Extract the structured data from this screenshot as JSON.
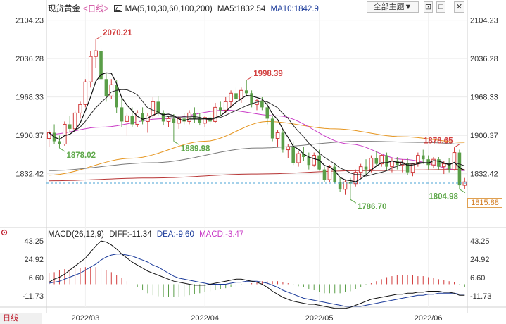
{
  "header": {
    "instrument": "现货黄金",
    "period": "<日线>",
    "ma_params": "MA(5,10,30,60,100,200)",
    "ma5": "MA5:1832.54",
    "ma10": "MA10:1842.9",
    "theme_button": "全部主题▼"
  },
  "macd_header": {
    "params": "MACD(26,12,9)",
    "diff": "DIFF:-11.34",
    "dea": "DEA:-9.60",
    "macd": "MACD:-3.47"
  },
  "footer": {
    "period_label": "日线"
  },
  "colors": {
    "up": "#d23c3c",
    "down": "#5a9e48",
    "ma5": "#111111",
    "ma10": "#2a2a2a",
    "ma30": "#c93ac6",
    "ma60": "#7a7a7a",
    "ma100": "#e6951e",
    "ma200": "#b83535",
    "label_high": "#d24040",
    "label_low": "#5ea84a",
    "current_price": "#d27a1e"
  },
  "icons": [
    "chart-type-icon",
    "restore-icon",
    "window-icon",
    "close-icon",
    "settings-gear-icon"
  ],
  "chart_data": {
    "type": "candlestick",
    "price_axis": {
      "ticks": [
        "2104.23",
        "2036.28",
        "1968.33",
        "1900.37",
        "1832.42"
      ],
      "range": [
        1766,
        2120
      ]
    },
    "x_axis": {
      "labels": [
        "2022/03",
        "2022/04",
        "2022/05",
        "2022/06"
      ],
      "label_indices": [
        7,
        30,
        52,
        73
      ]
    },
    "current_price": "1815.88",
    "annotations": [
      {
        "text": "2070.21",
        "index": 9,
        "kind": "high"
      },
      {
        "text": "1878.02",
        "index": 2,
        "kind": "low"
      },
      {
        "text": "1889.98",
        "index": 24,
        "kind": "low"
      },
      {
        "text": "1998.39",
        "index": 38,
        "kind": "high"
      },
      {
        "text": "1786.70",
        "index": 58,
        "kind": "low"
      },
      {
        "text": "1878.65",
        "index": 78,
        "kind": "high"
      },
      {
        "text": "1804.98",
        "index": 79,
        "kind": "low"
      }
    ],
    "candles": [
      [
        1895,
        1910,
        1880,
        1905
      ],
      [
        1905,
        1920,
        1885,
        1890
      ],
      [
        1890,
        1900,
        1878,
        1885
      ],
      [
        1885,
        1925,
        1882,
        1920
      ],
      [
        1920,
        1935,
        1905,
        1912
      ],
      [
        1912,
        1945,
        1908,
        1940
      ],
      [
        1940,
        1960,
        1930,
        1955
      ],
      [
        1955,
        2000,
        1950,
        1995
      ],
      [
        1995,
        2050,
        1985,
        2040
      ],
      [
        2040,
        2070,
        2020,
        2050
      ],
      [
        2050,
        2055,
        1990,
        2000
      ],
      [
        2000,
        2010,
        1960,
        1970
      ],
      [
        1970,
        2000,
        1965,
        1990
      ],
      [
        1990,
        1998,
        1940,
        1950
      ],
      [
        1950,
        1968,
        1915,
        1925
      ],
      [
        1925,
        1940,
        1900,
        1935
      ],
      [
        1935,
        1950,
        1915,
        1920
      ],
      [
        1920,
        1945,
        1915,
        1940
      ],
      [
        1940,
        1950,
        1920,
        1925
      ],
      [
        1925,
        1940,
        1905,
        1935
      ],
      [
        1935,
        1968,
        1930,
        1960
      ],
      [
        1960,
        1970,
        1935,
        1940
      ],
      [
        1940,
        1945,
        1918,
        1925
      ],
      [
        1925,
        1935,
        1915,
        1930
      ],
      [
        1930,
        1938,
        1890,
        1922
      ],
      [
        1922,
        1935,
        1912,
        1930
      ],
      [
        1930,
        1940,
        1920,
        1925
      ],
      [
        1925,
        1945,
        1920,
        1940
      ],
      [
        1940,
        1950,
        1922,
        1930
      ],
      [
        1930,
        1940,
        1918,
        1922
      ],
      [
        1922,
        1935,
        1915,
        1932
      ],
      [
        1932,
        1940,
        1920,
        1925
      ],
      [
        1925,
        1958,
        1922,
        1950
      ],
      [
        1950,
        1960,
        1935,
        1945
      ],
      [
        1945,
        1968,
        1940,
        1960
      ],
      [
        1960,
        1980,
        1950,
        1975
      ],
      [
        1975,
        1985,
        1960,
        1965
      ],
      [
        1965,
        1985,
        1958,
        1980
      ],
      [
        1980,
        1998,
        1970,
        1975
      ],
      [
        1975,
        1980,
        1950,
        1955
      ],
      [
        1955,
        1965,
        1945,
        1962
      ],
      [
        1962,
        1968,
        1945,
        1950
      ],
      [
        1950,
        1960,
        1920,
        1930
      ],
      [
        1930,
        1935,
        1890,
        1895
      ],
      [
        1895,
        1910,
        1880,
        1905
      ],
      [
        1905,
        1910,
        1870,
        1875
      ],
      [
        1875,
        1885,
        1860,
        1880
      ],
      [
        1880,
        1890,
        1848,
        1852
      ],
      [
        1852,
        1872,
        1845,
        1868
      ],
      [
        1868,
        1880,
        1855,
        1862
      ],
      [
        1862,
        1870,
        1840,
        1848
      ],
      [
        1848,
        1870,
        1845,
        1865
      ],
      [
        1865,
        1875,
        1838,
        1840
      ],
      [
        1840,
        1845,
        1818,
        1822
      ],
      [
        1822,
        1848,
        1818,
        1845
      ],
      [
        1845,
        1850,
        1815,
        1818
      ],
      [
        1818,
        1825,
        1800,
        1805
      ],
      [
        1805,
        1822,
        1795,
        1818
      ],
      [
        1818,
        1825,
        1787,
        1815
      ],
      [
        1815,
        1840,
        1810,
        1835
      ],
      [
        1835,
        1850,
        1825,
        1845
      ],
      [
        1845,
        1858,
        1830,
        1840
      ],
      [
        1840,
        1865,
        1835,
        1860
      ],
      [
        1860,
        1872,
        1845,
        1850
      ],
      [
        1850,
        1868,
        1845,
        1865
      ],
      [
        1865,
        1870,
        1838,
        1845
      ],
      [
        1845,
        1860,
        1835,
        1855
      ],
      [
        1855,
        1862,
        1840,
        1848
      ],
      [
        1848,
        1858,
        1835,
        1852
      ],
      [
        1852,
        1860,
        1830,
        1835
      ],
      [
        1835,
        1852,
        1828,
        1850
      ],
      [
        1850,
        1870,
        1845,
        1865
      ],
      [
        1865,
        1875,
        1850,
        1858
      ],
      [
        1858,
        1865,
        1840,
        1848
      ],
      [
        1848,
        1862,
        1842,
        1858
      ],
      [
        1858,
        1862,
        1840,
        1845
      ],
      [
        1845,
        1855,
        1832,
        1850
      ],
      [
        1850,
        1860,
        1835,
        1840
      ],
      [
        1840,
        1879,
        1838,
        1870
      ],
      [
        1870,
        1875,
        1805,
        1812
      ],
      [
        1812,
        1825,
        1805,
        1818
      ]
    ],
    "ma_periods": [
      5,
      10,
      30,
      60,
      100,
      200
    ],
    "ma_anchors": {
      "ma30": [
        [
          0,
          1902
        ],
        [
          10,
          1915
        ],
        [
          22,
          1930
        ],
        [
          34,
          1945
        ],
        [
          44,
          1935
        ],
        [
          58,
          1885
        ],
        [
          68,
          1858
        ],
        [
          80,
          1838
        ]
      ],
      "ma60": [
        [
          0,
          1838
        ],
        [
          20,
          1852
        ],
        [
          40,
          1878
        ],
        [
          60,
          1890
        ],
        [
          72,
          1888
        ],
        [
          80,
          1885
        ]
      ],
      "ma100": [
        [
          0,
          1830
        ],
        [
          16,
          1860
        ],
        [
          30,
          1890
        ],
        [
          42,
          1925
        ],
        [
          55,
          1912
        ],
        [
          68,
          1898
        ],
        [
          80,
          1888
        ]
      ],
      "ma200": [
        [
          0,
          1820
        ],
        [
          20,
          1825
        ],
        [
          40,
          1832
        ],
        [
          60,
          1838
        ],
        [
          80,
          1840
        ]
      ]
    },
    "macd": {
      "axis_ticks": [
        "43.25",
        "24.92",
        "6.60",
        "-11.73"
      ],
      "range": [
        -20,
        48
      ],
      "diff": [
        2,
        5,
        7,
        10,
        14,
        18,
        22,
        26,
        32,
        38,
        43,
        42,
        39,
        35,
        30,
        26,
        22,
        19,
        16,
        13,
        11,
        9,
        7,
        5,
        3,
        2,
        1,
        0,
        -1,
        -1,
        -1,
        0,
        1,
        2,
        3,
        4,
        5,
        5,
        4,
        3,
        2,
        0,
        -3,
        -7,
        -10,
        -13,
        -15,
        -17,
        -18,
        -19,
        -20,
        -20,
        -21,
        -22,
        -23,
        -24,
        -24,
        -24,
        -23,
        -21,
        -19,
        -17,
        -15,
        -14,
        -13,
        -12,
        -11,
        -10,
        -10,
        -9,
        -9,
        -8,
        -8,
        -7,
        -7,
        -7,
        -8,
        -8,
        -9,
        -11,
        -11
      ],
      "dea": [
        1,
        2,
        3,
        5,
        7,
        9,
        11,
        14,
        17,
        20,
        24,
        27,
        29,
        30,
        30,
        29,
        28,
        26,
        24,
        22,
        19,
        17,
        14,
        11,
        8,
        6,
        5,
        4,
        3,
        2,
        1,
        0,
        0,
        0,
        0,
        1,
        2,
        2,
        3,
        3,
        3,
        2,
        1,
        -1,
        -3,
        -6,
        -8,
        -10,
        -12,
        -14,
        -15,
        -16,
        -17,
        -18,
        -19,
        -20,
        -21,
        -22,
        -22,
        -22,
        -22,
        -21,
        -20,
        -19,
        -18,
        -17,
        -16,
        -15,
        -14,
        -13,
        -12,
        -11,
        -11,
        -10,
        -10,
        -9,
        -9,
        -9,
        -9,
        -10,
        -10
      ],
      "hist": [
        11,
        12,
        14,
        15,
        15,
        16,
        16,
        17,
        17,
        17,
        16,
        14,
        12,
        9,
        6,
        3,
        0,
        -3,
        -6,
        -9,
        -11,
        -12,
        -13,
        -13,
        -13,
        -13,
        -12,
        -11,
        -10,
        -9,
        -8,
        -7,
        -6,
        -5,
        -4,
        -3,
        -2,
        -1,
        0,
        1,
        2,
        3,
        3,
        3,
        3,
        2,
        1,
        -1,
        -2,
        -3,
        -5,
        -6,
        -8,
        -9,
        -9,
        -9,
        -9,
        -8,
        -7,
        -5,
        -3,
        -1,
        1,
        3,
        5,
        7,
        8,
        9,
        9,
        9,
        9,
        8,
        8,
        7,
        6,
        5,
        4,
        3,
        2,
        -1,
        -3
      ]
    }
  }
}
